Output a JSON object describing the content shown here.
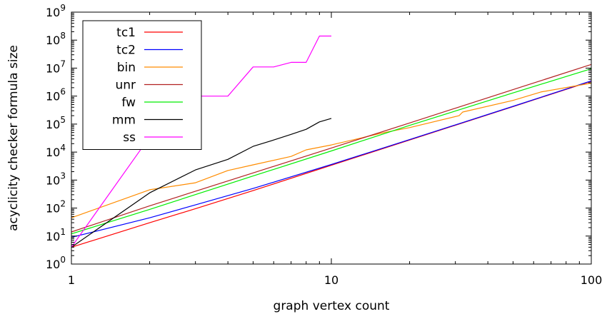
{
  "chart_data": {
    "type": "line",
    "xlabel": "graph vertex count",
    "ylabel": "acyclicity checker formula size",
    "xscale": "log",
    "yscale": "log",
    "xlim": [
      1,
      100
    ],
    "ylim": [
      1,
      1000000000
    ],
    "xticks": [
      {
        "value": 1,
        "label": "1"
      },
      {
        "value": 10,
        "label": "10"
      },
      {
        "value": 100,
        "label": "100"
      }
    ],
    "yticks": [
      {
        "value": 1,
        "base": "10",
        "exp": "0"
      },
      {
        "value": 10,
        "base": "10",
        "exp": "1"
      },
      {
        "value": 100,
        "base": "10",
        "exp": "2"
      },
      {
        "value": 1000,
        "base": "10",
        "exp": "3"
      },
      {
        "value": 10000,
        "base": "10",
        "exp": "4"
      },
      {
        "value": 100000,
        "base": "10",
        "exp": "5"
      },
      {
        "value": 1000000,
        "base": "10",
        "exp": "6"
      },
      {
        "value": 10000000,
        "base": "10",
        "exp": "7"
      },
      {
        "value": 100000000,
        "base": "10",
        "exp": "8"
      },
      {
        "value": 1000000000,
        "base": "10",
        "exp": "9"
      }
    ],
    "grid": false,
    "legend_position": "top-left",
    "series": [
      {
        "name": "tc1",
        "color": "#ff0000",
        "x": [
          1,
          2,
          3,
          5,
          10,
          20,
          50,
          100
        ],
        "y": [
          4,
          30,
          95,
          420,
          3400,
          27000,
          420000,
          3400000
        ]
      },
      {
        "name": "tc2",
        "color": "#0000ff",
        "x": [
          1,
          2,
          3,
          5,
          10,
          20,
          50,
          100
        ],
        "y": [
          9,
          45,
          130,
          500,
          3600,
          28000,
          430000,
          3500000
        ]
      },
      {
        "name": "bin",
        "color": "#ff8c00",
        "x": [
          1,
          2,
          3,
          4,
          5,
          7,
          8,
          10,
          16,
          20,
          31,
          32,
          50,
          64,
          100
        ],
        "y": [
          45,
          450,
          800,
          2200,
          3500,
          7000,
          12000,
          18000,
          50000,
          75000,
          200000,
          270000,
          700000,
          1400000,
          2900000
        ]
      },
      {
        "name": "unr",
        "color": "#b22222",
        "x": [
          1,
          2,
          5,
          10,
          20,
          50,
          100
        ],
        "y": [
          14,
          120,
          1800,
          14000,
          110000,
          1700000,
          13500000
        ]
      },
      {
        "name": "fw",
        "color": "#00ee00",
        "x": [
          1,
          2,
          5,
          10,
          20,
          50,
          100
        ],
        "y": [
          12,
          90,
          1400,
          11000,
          90000,
          1300000,
          9500000
        ]
      },
      {
        "name": "mm",
        "color": "#000000",
        "x": [
          1,
          2,
          3,
          4,
          5,
          6,
          7,
          8,
          9,
          10
        ],
        "y": [
          4,
          350,
          2300,
          5500,
          16000,
          27000,
          43000,
          65000,
          120000,
          160000
        ]
      },
      {
        "name": "ss",
        "color": "#ff00ff",
        "x": [
          1,
          2,
          3,
          4,
          5,
          6,
          7,
          8,
          9,
          10
        ],
        "y": [
          4,
          35000,
          1000000,
          1000000,
          11000000,
          11000000,
          16000000,
          16000000,
          140000000,
          140000000
        ]
      }
    ]
  }
}
